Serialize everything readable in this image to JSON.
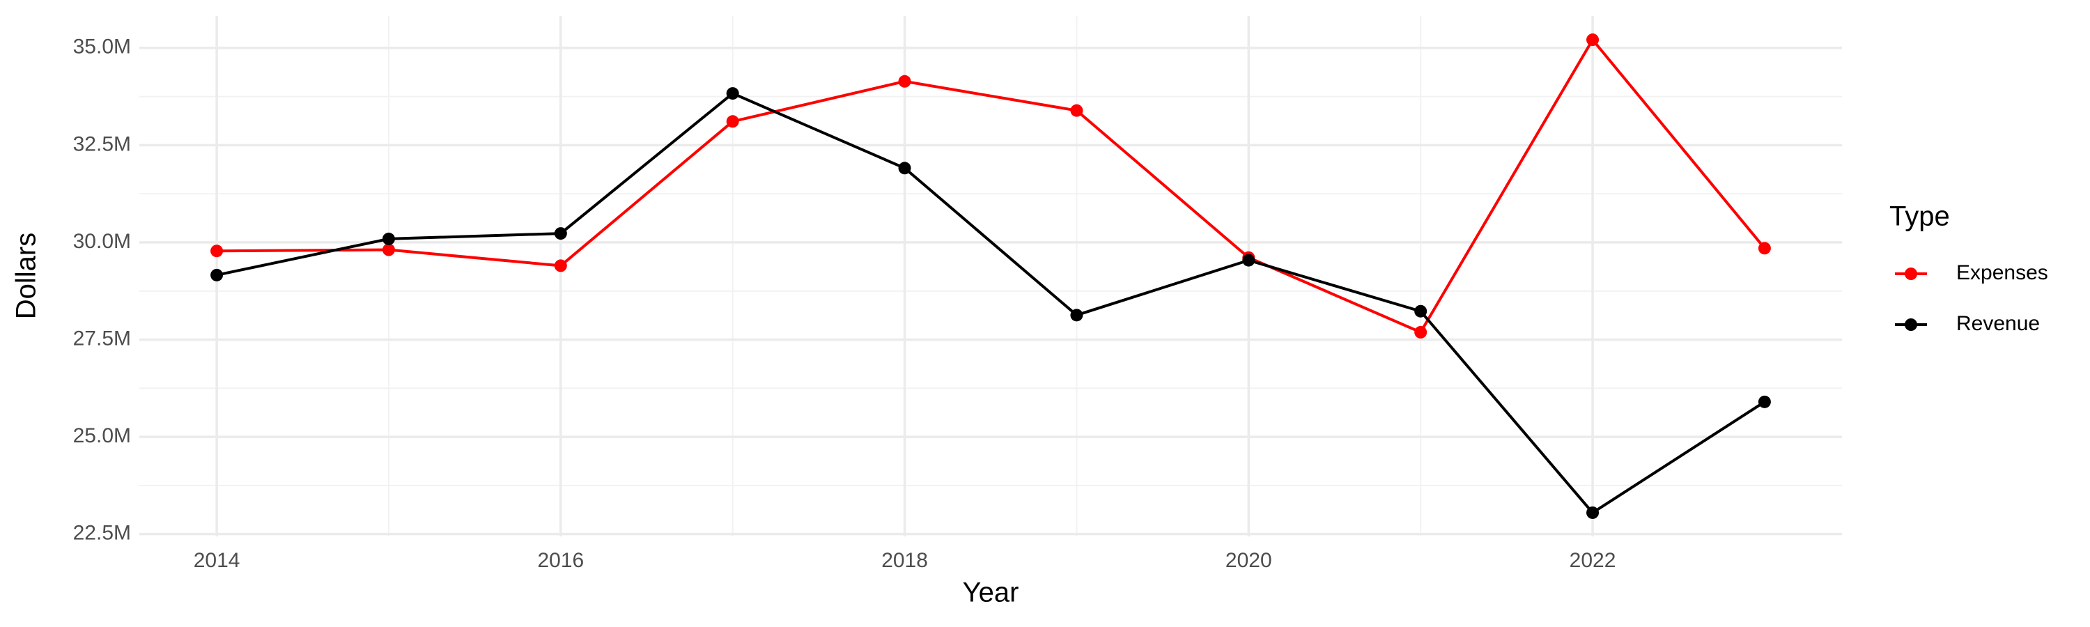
{
  "chart_data": {
    "type": "line",
    "x_label": "Year",
    "y_label": "Dollars",
    "x": [
      2014,
      2015,
      2016,
      2017,
      2018,
      2019,
      2020,
      2021,
      2022,
      2023
    ],
    "series": [
      {
        "name": "Expenses",
        "color": "#ff0000",
        "values": [
          29780000,
          29810000,
          29400000,
          33110000,
          34140000,
          33390000,
          29610000,
          27690000,
          35210000,
          29850000
        ]
      },
      {
        "name": "Revenue",
        "color": "#000000",
        "values": [
          29160000,
          30090000,
          30230000,
          33830000,
          31910000,
          28130000,
          29540000,
          28230000,
          23050000,
          25900000
        ]
      }
    ],
    "xlim": [
      2013.55,
      2023.45
    ],
    "xticks": [
      2014,
      2016,
      2018,
      2020,
      2022
    ],
    "ylim": [
      22440000,
      35820000
    ],
    "yticks": [
      {
        "value": 22500000,
        "label": "22.5M"
      },
      {
        "value": 25000000,
        "label": "25.0M"
      },
      {
        "value": 27500000,
        "label": "27.5M"
      },
      {
        "value": 30000000,
        "label": "30.0M"
      },
      {
        "value": 32500000,
        "label": "32.5M"
      },
      {
        "value": 35000000,
        "label": "35.0M"
      }
    ],
    "grid": true,
    "legend_title": "Type",
    "legend_position": "right"
  }
}
